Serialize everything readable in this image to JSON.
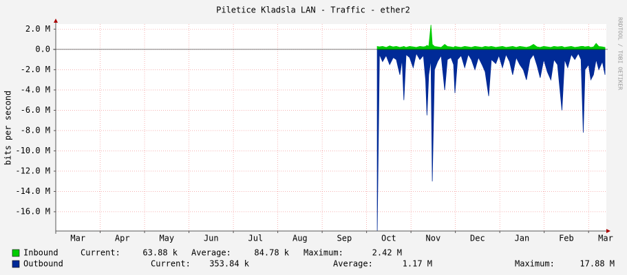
{
  "chart_data": {
    "type": "area",
    "title": "Piletice Kladsla LAN - Traffic - ether2",
    "y_label": "bits per second",
    "watermark": "RRDTOOL / TOBI OETIKER",
    "xlim": [
      0,
      12.4
    ],
    "xticks": [
      {
        "value": 0,
        "label": "Mar"
      },
      {
        "value": 1,
        "label": "Apr"
      },
      {
        "value": 2,
        "label": "May"
      },
      {
        "value": 3,
        "label": "Jun"
      },
      {
        "value": 4,
        "label": "Jul"
      },
      {
        "value": 5,
        "label": "Aug"
      },
      {
        "value": 6,
        "label": "Sep"
      },
      {
        "value": 7,
        "label": "Oct"
      },
      {
        "value": 8,
        "label": "Nov"
      },
      {
        "value": 9,
        "label": "Dec"
      },
      {
        "value": 10,
        "label": "Jan"
      },
      {
        "value": 11,
        "label": "Feb"
      },
      {
        "value": 12,
        "label": "Mar"
      }
    ],
    "ylim": [
      -17900000,
      2500000
    ],
    "yticks": [
      {
        "value": 2000000,
        "label": "2.0 M"
      },
      {
        "value": 0,
        "label": "0.0"
      },
      {
        "value": -2000000,
        "label": "-2.0 M"
      },
      {
        "value": -4000000,
        "label": "-4.0 M"
      },
      {
        "value": -6000000,
        "label": "-6.0 M"
      },
      {
        "value": -8000000,
        "label": "-8.0 M"
      },
      {
        "value": -10000000,
        "label": "-10.0 M"
      },
      {
        "value": -12000000,
        "label": "-12.0 M"
      },
      {
        "value": -14000000,
        "label": "-14.0 M"
      },
      {
        "value": -16000000,
        "label": "-16.0 M"
      }
    ],
    "grid": true,
    "x": [
      7.24,
      7.29,
      7.36,
      7.44,
      7.52,
      7.6,
      7.67,
      7.75,
      7.8,
      7.84,
      7.89,
      7.97,
      8.05,
      8.12,
      8.2,
      8.28,
      8.33,
      8.36,
      8.4,
      8.45,
      8.48,
      8.53,
      8.6,
      8.68,
      8.76,
      8.82,
      8.9,
      8.96,
      8.99,
      9.05,
      9.13,
      9.21,
      9.29,
      9.36,
      9.44,
      9.52,
      9.6,
      9.67,
      9.75,
      9.81,
      9.91,
      9.98,
      10.06,
      10.14,
      10.22,
      10.29,
      10.37,
      10.45,
      10.53,
      10.6,
      10.68,
      10.76,
      10.84,
      10.91,
      10.99,
      11.07,
      11.15,
      11.22,
      11.3,
      11.4,
      11.46,
      11.53,
      11.61,
      11.69,
      11.77,
      11.83,
      11.88,
      11.92,
      12.0,
      12.05,
      12.11,
      12.17,
      12.23,
      12.31,
      12.37
    ],
    "series": [
      {
        "name": "Inbound",
        "color": "#00cc00",
        "values": [
          300000,
          250000,
          300000,
          200000,
          350000,
          250000,
          300000,
          200000,
          250000,
          300000,
          200000,
          300000,
          250000,
          200000,
          300000,
          250000,
          300000,
          400000,
          300000,
          2420000,
          500000,
          300000,
          250000,
          200000,
          500000,
          300000,
          250000,
          200000,
          300000,
          250000,
          200000,
          300000,
          250000,
          200000,
          300000,
          250000,
          200000,
          300000,
          250000,
          300000,
          200000,
          250000,
          300000,
          200000,
          250000,
          300000,
          200000,
          300000,
          250000,
          200000,
          300000,
          500000,
          250000,
          200000,
          300000,
          250000,
          200000,
          300000,
          250000,
          300000,
          200000,
          250000,
          300000,
          200000,
          250000,
          300000,
          300000,
          250000,
          300000,
          200000,
          250000,
          600000,
          300000,
          250000,
          200000
        ],
        "stats": [
          {
            "label": "Current:",
            "value": "63.88 k"
          },
          {
            "label": "Average:",
            "value": "84.78 k"
          },
          {
            "label": "Maximum:",
            "value": "2.42 M"
          }
        ]
      },
      {
        "name": "Outbound",
        "color": "#002a97",
        "values": [
          -17880000,
          -500000,
          -1200000,
          -600000,
          -1500000,
          -800000,
          -1000000,
          -2500000,
          -1000000,
          -5000000,
          -500000,
          -800000,
          -1800000,
          -400000,
          -1000000,
          -600000,
          -3000000,
          -6500000,
          -2500000,
          -1000000,
          -13000000,
          -2000000,
          -1200000,
          -600000,
          -4000000,
          -1000000,
          -800000,
          -1500000,
          -4300000,
          -1000000,
          -600000,
          -1800000,
          -500000,
          -1000000,
          -2000000,
          -800000,
          -1500000,
          -2200000,
          -4600000,
          -1000000,
          -1400000,
          -600000,
          -1800000,
          -500000,
          -1200000,
          -2500000,
          -800000,
          -1500000,
          -2000000,
          -3000000,
          -1000000,
          -500000,
          -1600000,
          -2800000,
          -1000000,
          -2200000,
          -3000000,
          -1000000,
          -1500000,
          -6000000,
          -1000000,
          -1800000,
          -500000,
          -1000000,
          -400000,
          -1000000,
          -8200000,
          -2000000,
          -1500000,
          -3000000,
          -2500000,
          -1000000,
          -2000000,
          -1200000,
          -2500000
        ],
        "stats": [
          {
            "label": "Current:",
            "value": "353.84 k"
          },
          {
            "label": "Average:",
            "value": "1.17 M"
          },
          {
            "label": "Maximum:",
            "value": "17.88 M"
          }
        ]
      }
    ]
  }
}
